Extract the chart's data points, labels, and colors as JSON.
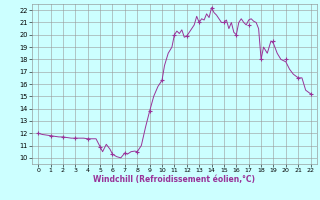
{
  "xlabel": "Windchill (Refroidissement éolien,°C)",
  "xlim": [
    -0.5,
    22.5
  ],
  "ylim": [
    9.5,
    22.5
  ],
  "yticks": [
    10,
    11,
    12,
    13,
    14,
    15,
    16,
    17,
    18,
    19,
    20,
    21,
    22
  ],
  "xticks": [
    0,
    1,
    2,
    3,
    4,
    5,
    6,
    7,
    8,
    9,
    10,
    11,
    12,
    13,
    14,
    15,
    16,
    17,
    18,
    19,
    20,
    21,
    22
  ],
  "line_color": "#993399",
  "bg_color": "#ccffff",
  "grid_color": "#999999",
  "x": [
    0,
    0.33,
    0.67,
    1,
    1.33,
    1.67,
    2,
    2.33,
    2.67,
    3,
    3.33,
    3.67,
    4,
    4.33,
    4.67,
    5,
    5.2,
    5.5,
    5.8,
    6,
    6.33,
    6.67,
    7,
    7.2,
    7.5,
    7.8,
    8,
    8.33,
    8.67,
    9,
    9.33,
    9.67,
    10,
    10.2,
    10.5,
    10.8,
    11,
    11.2,
    11.4,
    11.6,
    11.8,
    12,
    12.2,
    12.4,
    12.6,
    12.8,
    13,
    13.2,
    13.4,
    13.6,
    13.8,
    14,
    14.2,
    14.4,
    14.6,
    14.8,
    15,
    15.2,
    15.4,
    15.6,
    15.8,
    16,
    16.2,
    16.4,
    16.6,
    16.8,
    17,
    17.2,
    17.4,
    17.6,
    17.8,
    18,
    18.2,
    18.5,
    18.8,
    19,
    19.3,
    19.6,
    20,
    20.3,
    20.6,
    21,
    21.3,
    21.6,
    22
  ],
  "y": [
    12.0,
    11.9,
    11.85,
    11.8,
    11.75,
    11.7,
    11.7,
    11.65,
    11.6,
    11.6,
    11.6,
    11.6,
    11.55,
    11.55,
    11.55,
    10.9,
    10.5,
    11.1,
    10.7,
    10.3,
    10.1,
    10.0,
    10.4,
    10.3,
    10.5,
    10.55,
    10.5,
    11.0,
    12.5,
    13.8,
    15.0,
    15.8,
    16.3,
    17.5,
    18.5,
    19.0,
    20.0,
    20.3,
    20.1,
    20.4,
    19.8,
    19.9,
    20.2,
    20.5,
    20.8,
    21.5,
    21.0,
    21.3,
    21.2,
    21.7,
    21.4,
    22.2,
    21.8,
    21.6,
    21.3,
    21.0,
    21.0,
    21.2,
    20.5,
    21.0,
    20.2,
    20.0,
    21.0,
    21.3,
    21.0,
    20.8,
    21.2,
    21.3,
    21.1,
    21.0,
    20.5,
    18.0,
    19.0,
    18.5,
    19.5,
    19.3,
    18.5,
    18.0,
    17.8,
    17.2,
    16.8,
    16.5,
    16.5,
    15.5,
    15.2
  ],
  "marker_x": [
    0,
    1,
    2,
    3,
    4,
    5,
    6,
    7,
    8,
    9,
    10,
    11,
    12,
    13,
    14,
    15,
    16,
    17,
    18,
    19,
    20,
    21,
    22
  ],
  "marker_y": [
    12.0,
    11.8,
    11.7,
    11.6,
    11.55,
    10.9,
    10.3,
    10.4,
    10.5,
    13.8,
    16.3,
    20.0,
    19.9,
    21.0,
    22.2,
    21.0,
    20.0,
    20.8,
    18.0,
    19.5,
    18.0,
    16.5,
    15.2
  ]
}
